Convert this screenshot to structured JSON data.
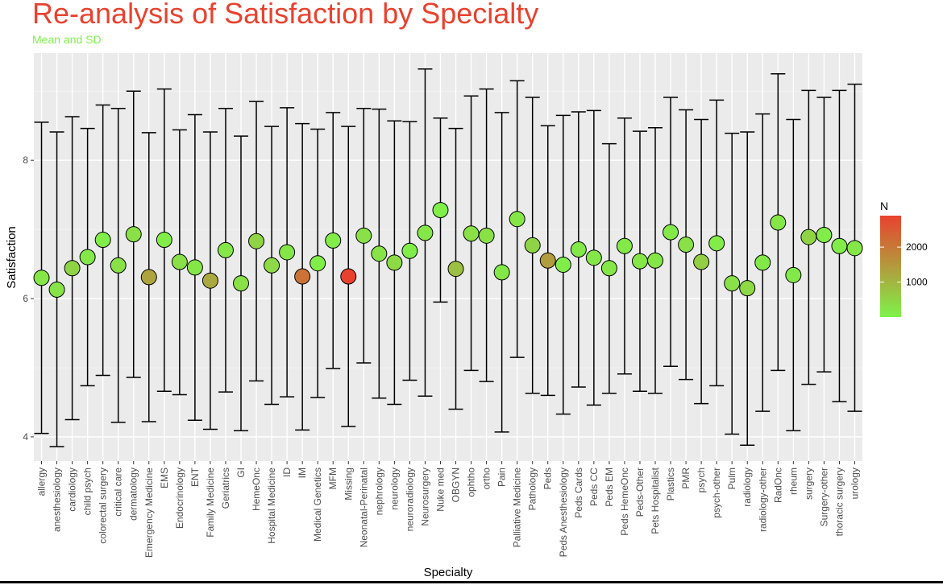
{
  "chart_data": {
    "type": "scatter",
    "title": "Re-analysis of Satisfaction by Specialty",
    "subtitle": "Mean and SD",
    "xlabel": "Specialty",
    "ylabel": "Satisfaction",
    "ylim": [
      3.65,
      9.55
    ],
    "yticks": [
      4,
      6,
      8
    ],
    "grid": true,
    "legend": {
      "title": "N",
      "placement": "right",
      "labels": [
        "2000",
        "1000"
      ],
      "label_values": [
        2000,
        1000
      ],
      "range": [
        0,
        2900
      ],
      "color_low": "#7ef24a",
      "color_high": "#e8422f"
    },
    "series": [
      {
        "name": "allergy",
        "mean": 6.3,
        "lower": 4.05,
        "upper": 8.55,
        "n": 200
      },
      {
        "name": "anesthesiology",
        "mean": 6.13,
        "lower": 3.86,
        "upper": 8.41,
        "n": 250
      },
      {
        "name": "cardiology",
        "mean": 6.44,
        "lower": 4.25,
        "upper": 8.63,
        "n": 500
      },
      {
        "name": "child psych",
        "mean": 6.6,
        "lower": 4.74,
        "upper": 8.46,
        "n": 150
      },
      {
        "name": "colorectal surgery",
        "mean": 6.85,
        "lower": 4.89,
        "upper": 8.8,
        "n": 100
      },
      {
        "name": "critical care",
        "mean": 6.48,
        "lower": 4.21,
        "upper": 8.75,
        "n": 300
      },
      {
        "name": "dermatology",
        "mean": 6.93,
        "lower": 4.86,
        "upper": 9.0,
        "n": 300
      },
      {
        "name": "Emergency Medicine",
        "mean": 6.31,
        "lower": 4.22,
        "upper": 8.4,
        "n": 1300
      },
      {
        "name": "EMS",
        "mean": 6.85,
        "lower": 4.66,
        "upper": 9.03,
        "n": 80
      },
      {
        "name": "Endocrinology",
        "mean": 6.53,
        "lower": 4.61,
        "upper": 8.44,
        "n": 300
      },
      {
        "name": "ENT",
        "mean": 6.45,
        "lower": 4.24,
        "upper": 8.66,
        "n": 200
      },
      {
        "name": "Family Medicine",
        "mean": 6.26,
        "lower": 4.11,
        "upper": 8.41,
        "n": 1200
      },
      {
        "name": "Geriatrics",
        "mean": 6.7,
        "lower": 4.65,
        "upper": 8.75,
        "n": 200
      },
      {
        "name": "GI",
        "mean": 6.22,
        "lower": 4.09,
        "upper": 8.35,
        "n": 300
      },
      {
        "name": "HemeOnc",
        "mean": 6.83,
        "lower": 4.81,
        "upper": 8.85,
        "n": 500
      },
      {
        "name": "Hospital Medicine",
        "mean": 6.48,
        "lower": 4.47,
        "upper": 8.49,
        "n": 400
      },
      {
        "name": "ID",
        "mean": 6.67,
        "lower": 4.58,
        "upper": 8.76,
        "n": 200
      },
      {
        "name": "IM",
        "mean": 6.32,
        "lower": 4.1,
        "upper": 8.53,
        "n": 2100
      },
      {
        "name": "Medical Genetics",
        "mean": 6.51,
        "lower": 4.57,
        "upper": 8.45,
        "n": 80
      },
      {
        "name": "MFM",
        "mean": 6.84,
        "lower": 4.99,
        "upper": 8.69,
        "n": 100
      },
      {
        "name": "Missing",
        "mean": 6.32,
        "lower": 4.15,
        "upper": 8.49,
        "n": 2900
      },
      {
        "name": "Neonatal-Perinatal",
        "mean": 6.91,
        "lower": 5.07,
        "upper": 8.75,
        "n": 300
      },
      {
        "name": "nephrology",
        "mean": 6.65,
        "lower": 4.56,
        "upper": 8.74,
        "n": 250
      },
      {
        "name": "neurology",
        "mean": 6.52,
        "lower": 4.47,
        "upper": 8.57,
        "n": 400
      },
      {
        "name": "neuroradiology",
        "mean": 6.69,
        "lower": 4.82,
        "upper": 8.56,
        "n": 80
      },
      {
        "name": "Neurosurgery",
        "mean": 6.95,
        "lower": 4.59,
        "upper": 9.32,
        "n": 200
      },
      {
        "name": "Nuke med",
        "mean": 7.28,
        "lower": 5.95,
        "upper": 8.61,
        "n": 50
      },
      {
        "name": "OBGYN",
        "mean": 6.43,
        "lower": 4.4,
        "upper": 8.46,
        "n": 800
      },
      {
        "name": "ophtho",
        "mean": 6.94,
        "lower": 4.96,
        "upper": 8.93,
        "n": 300
      },
      {
        "name": "ortho",
        "mean": 6.91,
        "lower": 4.8,
        "upper": 9.03,
        "n": 300
      },
      {
        "name": "Pain",
        "mean": 6.38,
        "lower": 4.07,
        "upper": 8.69,
        "n": 150
      },
      {
        "name": "Palliative Medicine",
        "mean": 7.15,
        "lower": 5.15,
        "upper": 9.15,
        "n": 200
      },
      {
        "name": "Pathology",
        "mean": 6.77,
        "lower": 4.63,
        "upper": 8.91,
        "n": 500
      },
      {
        "name": "Peds",
        "mean": 6.55,
        "lower": 4.6,
        "upper": 8.5,
        "n": 1400
      },
      {
        "name": "Peds Anesthesiology",
        "mean": 6.49,
        "lower": 4.33,
        "upper": 8.65,
        "n": 80
      },
      {
        "name": "Peds Cards",
        "mean": 6.71,
        "lower": 4.72,
        "upper": 8.7,
        "n": 150
      },
      {
        "name": "Peds CC",
        "mean": 6.59,
        "lower": 4.46,
        "upper": 8.72,
        "n": 200
      },
      {
        "name": "Peds EM",
        "mean": 6.44,
        "lower": 4.63,
        "upper": 8.24,
        "n": 200
      },
      {
        "name": "Peds HemeOnc",
        "mean": 6.76,
        "lower": 4.91,
        "upper": 8.61,
        "n": 150
      },
      {
        "name": "Peds-Other",
        "mean": 6.54,
        "lower": 4.66,
        "upper": 8.42,
        "n": 200
      },
      {
        "name": "Pets Hospitalist",
        "mean": 6.55,
        "lower": 4.63,
        "upper": 8.47,
        "n": 200
      },
      {
        "name": "Plastics",
        "mean": 6.96,
        "lower": 5.02,
        "upper": 8.91,
        "n": 150
      },
      {
        "name": "PMR",
        "mean": 6.78,
        "lower": 4.83,
        "upper": 8.73,
        "n": 300
      },
      {
        "name": "psych",
        "mean": 6.53,
        "lower": 4.48,
        "upper": 8.59,
        "n": 600
      },
      {
        "name": "psych-other",
        "mean": 6.8,
        "lower": 4.74,
        "upper": 8.87,
        "n": 100
      },
      {
        "name": "Pulm",
        "mean": 6.22,
        "lower": 4.04,
        "upper": 8.39,
        "n": 300
      },
      {
        "name": "radiology",
        "mean": 6.15,
        "lower": 3.88,
        "upper": 8.41,
        "n": 400
      },
      {
        "name": "radiology-other",
        "mean": 6.52,
        "lower": 4.37,
        "upper": 8.67,
        "n": 150
      },
      {
        "name": "RadOnc",
        "mean": 7.1,
        "lower": 4.96,
        "upper": 9.25,
        "n": 200
      },
      {
        "name": "rheum",
        "mean": 6.34,
        "lower": 4.09,
        "upper": 8.59,
        "n": 150
      },
      {
        "name": "surgery",
        "mean": 6.89,
        "lower": 4.76,
        "upper": 9.01,
        "n": 500
      },
      {
        "name": "Surgery-other",
        "mean": 6.92,
        "lower": 4.94,
        "upper": 8.91,
        "n": 100
      },
      {
        "name": "thoracic surgery",
        "mean": 6.76,
        "lower": 4.51,
        "upper": 9.01,
        "n": 100
      },
      {
        "name": "urology",
        "mean": 6.73,
        "lower": 4.37,
        "upper": 9.1,
        "n": 200
      }
    ]
  }
}
